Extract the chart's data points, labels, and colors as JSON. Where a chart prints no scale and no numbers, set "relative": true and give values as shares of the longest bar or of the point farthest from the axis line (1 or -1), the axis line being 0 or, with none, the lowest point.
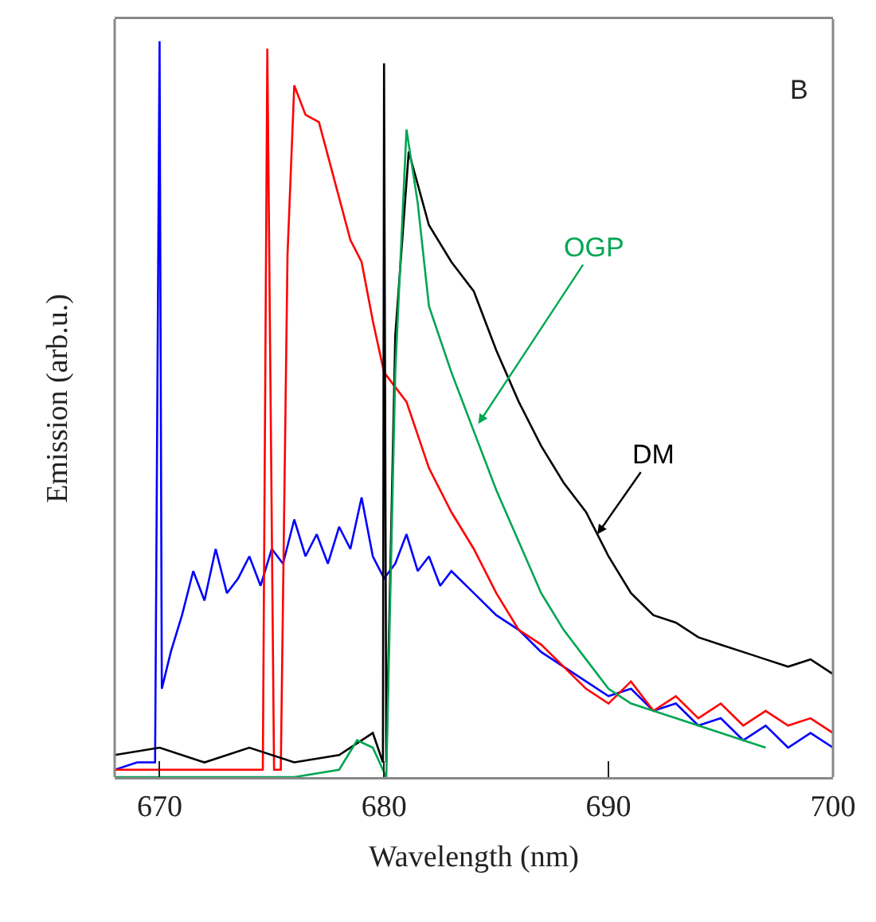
{
  "chart_data": {
    "type": "line",
    "relative": true,
    "xlabel": "Wavelength (nm)",
    "ylabel": "Emission (arb.u.)",
    "xlim": [
      668,
      700
    ],
    "xticks": [
      670,
      680,
      690,
      700
    ],
    "grid": false,
    "marker": "none",
    "line_style": "solid",
    "annotations": [
      "B",
      {
        "text": "OGP",
        "x": 684.2,
        "y": 0.48
      },
      {
        "text": "DM",
        "x": 689.5,
        "y": 0.33
      }
    ],
    "series": [
      {
        "color": "#0000ff",
        "x": [
          668,
          669,
          669.8,
          670,
          670.1,
          670.5,
          671,
          671.5,
          672,
          672.5,
          673,
          673.5,
          674,
          674.5,
          675,
          675.5,
          676,
          676.5,
          677,
          677.5,
          678,
          678.5,
          679,
          679.5,
          680,
          680.5,
          681,
          681.5,
          682,
          682.5,
          683,
          684,
          685,
          686,
          687,
          688,
          689,
          690,
          691,
          692,
          693,
          694,
          695,
          696,
          697,
          698,
          699,
          700
        ],
        "values": [
          0.01,
          0.02,
          0.02,
          1.0,
          0.12,
          0.17,
          0.22,
          0.28,
          0.24,
          0.31,
          0.25,
          0.27,
          0.3,
          0.26,
          0.31,
          0.29,
          0.35,
          0.3,
          0.33,
          0.29,
          0.34,
          0.31,
          0.38,
          0.3,
          0.27,
          0.29,
          0.33,
          0.28,
          0.3,
          0.26,
          0.28,
          0.25,
          0.22,
          0.2,
          0.17,
          0.15,
          0.13,
          0.11,
          0.12,
          0.09,
          0.1,
          0.07,
          0.08,
          0.05,
          0.07,
          0.04,
          0.06,
          0.04
        ]
      },
      {
        "color": "#ff0000",
        "x": [
          668,
          672,
          674.6,
          674.8,
          675.1,
          675.4,
          675.7,
          676,
          676.5,
          677.1,
          677.8,
          678.5,
          679,
          679.5,
          680,
          681,
          682,
          683,
          684,
          685,
          686,
          687,
          688,
          689,
          690,
          691,
          692,
          693,
          694,
          695,
          696,
          697,
          698,
          699,
          700
        ],
        "values": [
          0.01,
          0.01,
          0.01,
          0.99,
          0.01,
          0.01,
          0.71,
          0.94,
          0.9,
          0.89,
          0.81,
          0.73,
          0.7,
          0.62,
          0.55,
          0.51,
          0.42,
          0.36,
          0.31,
          0.25,
          0.2,
          0.18,
          0.15,
          0.12,
          0.1,
          0.13,
          0.09,
          0.11,
          0.08,
          0.1,
          0.07,
          0.09,
          0.07,
          0.08,
          0.06
        ]
      },
      {
        "color": "#000000",
        "x": [
          668,
          670,
          672,
          674,
          676,
          678,
          679.5,
          679.95,
          680,
          680.1,
          680.5,
          681.1,
          682,
          683,
          684,
          685,
          686,
          687,
          688,
          689,
          690,
          691,
          692,
          693,
          694,
          695,
          696,
          697,
          698,
          699,
          700
        ],
        "values": [
          0.03,
          0.04,
          0.02,
          0.04,
          0.02,
          0.03,
          0.06,
          0.02,
          0.97,
          0.02,
          0.6,
          0.85,
          0.75,
          0.7,
          0.66,
          0.58,
          0.51,
          0.45,
          0.4,
          0.36,
          0.3,
          0.25,
          0.22,
          0.21,
          0.19,
          0.18,
          0.17,
          0.16,
          0.15,
          0.16,
          0.14
        ]
      },
      {
        "color": "#00a651",
        "x": [
          668,
          672,
          676,
          678,
          678.8,
          679.5,
          680.1,
          680.5,
          681,
          681.5,
          682,
          683,
          684,
          685,
          686,
          687,
          688,
          689,
          690,
          691,
          692,
          693,
          694,
          695,
          696,
          697
        ],
        "values": [
          0.0,
          0.0,
          0.0,
          0.01,
          0.05,
          0.04,
          0.0,
          0.55,
          0.88,
          0.78,
          0.64,
          0.55,
          0.47,
          0.39,
          0.32,
          0.25,
          0.2,
          0.16,
          0.12,
          0.1,
          0.09,
          0.08,
          0.07,
          0.06,
          0.05,
          0.04
        ]
      }
    ]
  }
}
